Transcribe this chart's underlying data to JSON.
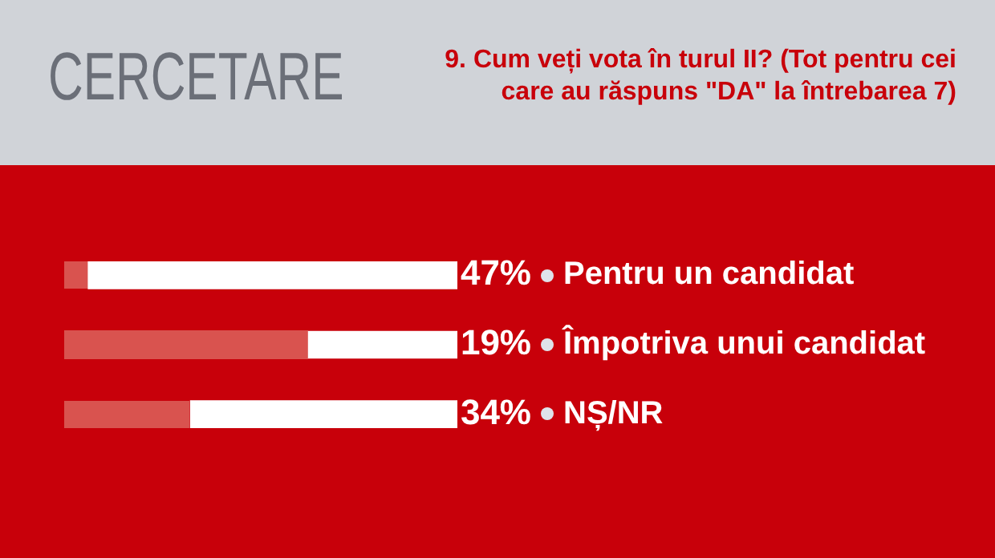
{
  "chart_data": {
    "type": "bar",
    "orientation": "horizontal",
    "title": "CERCETARE",
    "subtitle": "9. Cum veți vota în turul II? (Tot pentru cei care au răspuns \"DA\" la întrebarea 7)",
    "categories": [
      "Pentru un candidat",
      "Împotriva unui candidat",
      "NȘ/NR"
    ],
    "values": [
      47,
      19,
      34
    ],
    "color": "#ffffff",
    "value_labels": [
      "47%",
      "19%",
      "34%"
    ],
    "legend": false
  }
}
